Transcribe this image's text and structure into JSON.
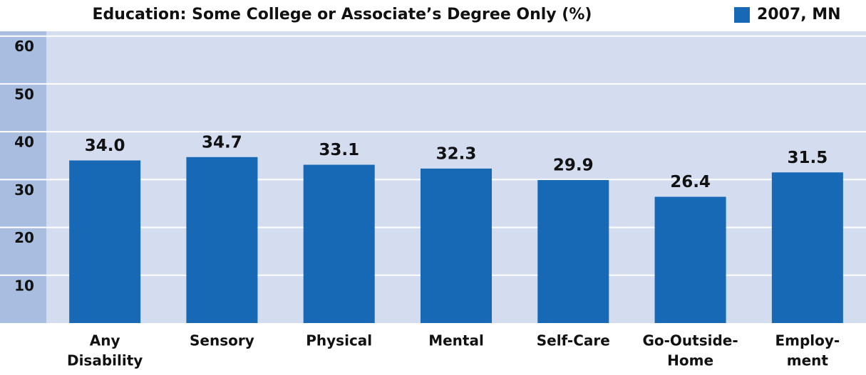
{
  "chart_data": {
    "type": "bar",
    "title": "Education: Some College or Associate’s Degree Only (%)",
    "categories": [
      [
        "Any",
        "Disability"
      ],
      [
        "Sensory"
      ],
      [
        "Physical"
      ],
      [
        "Mental"
      ],
      [
        "Self-Care"
      ],
      [
        "Go-Outside-",
        "Home"
      ],
      [
        "Employ-",
        "ment"
      ]
    ],
    "series": [
      {
        "name": "2007, MN",
        "color": "#1769b5",
        "values": [
          34.0,
          34.7,
          33.1,
          32.3,
          29.9,
          26.4,
          31.5
        ],
        "value_labels": [
          "34.0",
          "34.7",
          "33.1",
          "32.3",
          "29.9",
          "26.4",
          "31.5"
        ]
      }
    ],
    "ylim": [
      0,
      61
    ],
    "yticks": [
      10,
      20,
      30,
      40,
      50,
      60
    ],
    "grid": true,
    "legend": "top-right"
  }
}
